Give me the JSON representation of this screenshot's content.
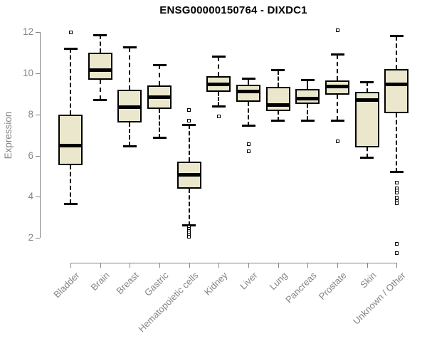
{
  "chart": {
    "title": "ENSG00000150764 - DIXDC1",
    "ylabel": "Expression"
  },
  "colors": {
    "box_fill": "#EBE7CC",
    "box_border": "#000000",
    "axis": "#848484",
    "title": "#000000",
    "background": "#FFFFFF"
  },
  "chart_data": {
    "type": "boxplot",
    "title": "ENSG00000150764 - DIXDC1",
    "xlabel": "",
    "ylabel": "Expression",
    "yticks": [
      2,
      4,
      6,
      8,
      10,
      12
    ],
    "ylim": [
      1.0,
      12.3
    ],
    "grid": false,
    "legend": "none",
    "whisker_style": "dashed",
    "categories": [
      "Bladder",
      "Brain",
      "Breast",
      "Gastric",
      "Hematopoietic cells",
      "Kidney",
      "Liver",
      "Lung",
      "Pancreas",
      "Prostate",
      "Skin",
      "Unknown / Other"
    ],
    "series": [
      {
        "name": "Bladder",
        "whisker_low": 3.65,
        "q1": 5.55,
        "median": 6.5,
        "q3": 8.0,
        "whisker_high": 11.2,
        "outliers": [
          12.0
        ]
      },
      {
        "name": "Brain",
        "whisker_low": 8.7,
        "q1": 9.7,
        "median": 10.15,
        "q3": 11.0,
        "whisker_high": 11.85,
        "outliers": []
      },
      {
        "name": "Breast",
        "whisker_low": 6.45,
        "q1": 7.6,
        "median": 8.35,
        "q3": 9.2,
        "whisker_high": 11.25,
        "outliers": []
      },
      {
        "name": "Gastric",
        "whisker_low": 6.85,
        "q1": 8.25,
        "median": 8.85,
        "q3": 9.4,
        "whisker_high": 10.4,
        "outliers": []
      },
      {
        "name": "Hematopoietic cells",
        "whisker_low": 2.6,
        "q1": 4.4,
        "median": 5.05,
        "q3": 5.7,
        "whisker_high": 7.5,
        "outliers": [
          8.2,
          7.7,
          2.55,
          2.45,
          2.35,
          2.25,
          2.15,
          2.05
        ]
      },
      {
        "name": "Kidney",
        "whisker_low": 8.4,
        "q1": 9.1,
        "median": 9.45,
        "q3": 9.85,
        "whisker_high": 10.8,
        "outliers": [
          7.9
        ]
      },
      {
        "name": "Liver",
        "whisker_low": 7.45,
        "q1": 8.6,
        "median": 9.1,
        "q3": 9.45,
        "whisker_high": 9.75,
        "outliers": [
          6.55,
          6.2
        ]
      },
      {
        "name": "Lung",
        "whisker_low": 7.7,
        "q1": 8.15,
        "median": 8.45,
        "q3": 9.35,
        "whisker_high": 10.15,
        "outliers": []
      },
      {
        "name": "Pancreas",
        "whisker_low": 7.7,
        "q1": 8.5,
        "median": 8.75,
        "q3": 9.25,
        "whisker_high": 9.65,
        "outliers": []
      },
      {
        "name": "Prostate",
        "whisker_low": 7.7,
        "q1": 8.95,
        "median": 9.35,
        "q3": 9.65,
        "whisker_high": 10.9,
        "outliers": [
          12.1,
          6.7
        ]
      },
      {
        "name": "Skin",
        "whisker_low": 5.9,
        "q1": 6.4,
        "median": 8.7,
        "q3": 9.1,
        "whisker_high": 9.55,
        "outliers": []
      },
      {
        "name": "Unknown / Other",
        "whisker_low": 5.2,
        "q1": 8.05,
        "median": 9.45,
        "q3": 10.2,
        "whisker_high": 11.8,
        "outliers": [
          4.7,
          4.4,
          4.3,
          4.2,
          3.95,
          3.8,
          3.7,
          1.7,
          1.25
        ]
      }
    ]
  }
}
